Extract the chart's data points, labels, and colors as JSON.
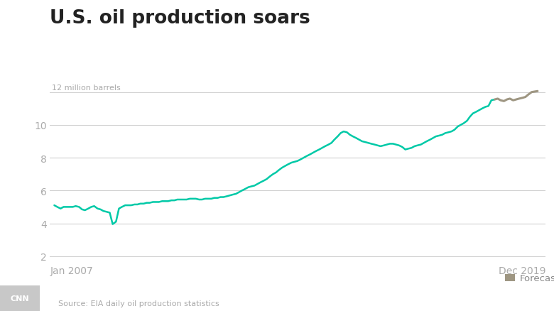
{
  "title": "U.S. oil production soars",
  "ylabel_top": "12 million barrels",
  "source": "Source: EIA daily oil production statistics",
  "forecast_label": "Forecast",
  "xlim_start": 2006.88,
  "xlim_end": 2020.3,
  "ylim": [
    1.6,
    13.0
  ],
  "yticks": [
    2,
    4,
    6,
    8,
    10,
    12
  ],
  "actual_color": "#00C9A7",
  "forecast_color": "#9E9682",
  "background_color": "#ffffff",
  "grid_color": "#d0d0d0",
  "title_fontsize": 19,
  "tick_fontsize": 10,
  "label_fontsize": 8.5,
  "source_fontsize": 8,
  "cnn_bg": "#c8c8c8",
  "actual_data": [
    [
      2007.0,
      5.1
    ],
    [
      2007.08,
      5.0
    ],
    [
      2007.17,
      4.9
    ],
    [
      2007.25,
      5.0
    ],
    [
      2007.33,
      5.0
    ],
    [
      2007.42,
      5.0
    ],
    [
      2007.5,
      5.0
    ],
    [
      2007.58,
      5.05
    ],
    [
      2007.67,
      5.0
    ],
    [
      2007.75,
      4.85
    ],
    [
      2007.83,
      4.8
    ],
    [
      2007.92,
      4.9
    ],
    [
      2008.0,
      5.0
    ],
    [
      2008.08,
      5.05
    ],
    [
      2008.17,
      4.9
    ],
    [
      2008.25,
      4.85
    ],
    [
      2008.33,
      4.75
    ],
    [
      2008.42,
      4.7
    ],
    [
      2008.5,
      4.65
    ],
    [
      2008.58,
      3.95
    ],
    [
      2008.67,
      4.1
    ],
    [
      2008.75,
      4.9
    ],
    [
      2008.83,
      5.0
    ],
    [
      2008.92,
      5.1
    ],
    [
      2009.0,
      5.1
    ],
    [
      2009.08,
      5.1
    ],
    [
      2009.17,
      5.15
    ],
    [
      2009.25,
      5.15
    ],
    [
      2009.33,
      5.2
    ],
    [
      2009.42,
      5.2
    ],
    [
      2009.5,
      5.25
    ],
    [
      2009.58,
      5.25
    ],
    [
      2009.67,
      5.3
    ],
    [
      2009.75,
      5.3
    ],
    [
      2009.83,
      5.3
    ],
    [
      2009.92,
      5.35
    ],
    [
      2010.0,
      5.35
    ],
    [
      2010.08,
      5.35
    ],
    [
      2010.17,
      5.4
    ],
    [
      2010.25,
      5.4
    ],
    [
      2010.33,
      5.45
    ],
    [
      2010.42,
      5.45
    ],
    [
      2010.5,
      5.45
    ],
    [
      2010.58,
      5.45
    ],
    [
      2010.67,
      5.5
    ],
    [
      2010.75,
      5.5
    ],
    [
      2010.83,
      5.5
    ],
    [
      2010.92,
      5.45
    ],
    [
      2011.0,
      5.45
    ],
    [
      2011.08,
      5.5
    ],
    [
      2011.17,
      5.5
    ],
    [
      2011.25,
      5.5
    ],
    [
      2011.33,
      5.55
    ],
    [
      2011.42,
      5.55
    ],
    [
      2011.5,
      5.6
    ],
    [
      2011.58,
      5.6
    ],
    [
      2011.67,
      5.65
    ],
    [
      2011.75,
      5.7
    ],
    [
      2011.83,
      5.75
    ],
    [
      2011.92,
      5.8
    ],
    [
      2012.0,
      5.9
    ],
    [
      2012.08,
      6.0
    ],
    [
      2012.17,
      6.1
    ],
    [
      2012.25,
      6.2
    ],
    [
      2012.33,
      6.25
    ],
    [
      2012.42,
      6.3
    ],
    [
      2012.5,
      6.4
    ],
    [
      2012.58,
      6.5
    ],
    [
      2012.67,
      6.6
    ],
    [
      2012.75,
      6.7
    ],
    [
      2012.83,
      6.85
    ],
    [
      2012.92,
      7.0
    ],
    [
      2013.0,
      7.1
    ],
    [
      2013.08,
      7.25
    ],
    [
      2013.17,
      7.4
    ],
    [
      2013.25,
      7.5
    ],
    [
      2013.33,
      7.6
    ],
    [
      2013.42,
      7.7
    ],
    [
      2013.5,
      7.75
    ],
    [
      2013.58,
      7.8
    ],
    [
      2013.67,
      7.9
    ],
    [
      2013.75,
      8.0
    ],
    [
      2013.83,
      8.1
    ],
    [
      2013.92,
      8.2
    ],
    [
      2014.0,
      8.3
    ],
    [
      2014.08,
      8.4
    ],
    [
      2014.17,
      8.5
    ],
    [
      2014.25,
      8.6
    ],
    [
      2014.33,
      8.7
    ],
    [
      2014.42,
      8.8
    ],
    [
      2014.5,
      8.9
    ],
    [
      2014.58,
      9.1
    ],
    [
      2014.67,
      9.3
    ],
    [
      2014.75,
      9.5
    ],
    [
      2014.83,
      9.6
    ],
    [
      2014.92,
      9.55
    ],
    [
      2015.0,
      9.4
    ],
    [
      2015.08,
      9.3
    ],
    [
      2015.17,
      9.2
    ],
    [
      2015.25,
      9.1
    ],
    [
      2015.33,
      9.0
    ],
    [
      2015.42,
      8.95
    ],
    [
      2015.5,
      8.9
    ],
    [
      2015.58,
      8.85
    ],
    [
      2015.67,
      8.8
    ],
    [
      2015.75,
      8.75
    ],
    [
      2015.83,
      8.7
    ],
    [
      2015.92,
      8.75
    ],
    [
      2016.0,
      8.8
    ],
    [
      2016.08,
      8.85
    ],
    [
      2016.17,
      8.85
    ],
    [
      2016.25,
      8.8
    ],
    [
      2016.33,
      8.75
    ],
    [
      2016.42,
      8.65
    ],
    [
      2016.5,
      8.5
    ],
    [
      2016.58,
      8.55
    ],
    [
      2016.67,
      8.6
    ],
    [
      2016.75,
      8.7
    ],
    [
      2016.83,
      8.75
    ],
    [
      2016.92,
      8.8
    ],
    [
      2017.0,
      8.9
    ],
    [
      2017.08,
      9.0
    ],
    [
      2017.17,
      9.1
    ],
    [
      2017.25,
      9.2
    ],
    [
      2017.33,
      9.3
    ],
    [
      2017.42,
      9.35
    ],
    [
      2017.5,
      9.4
    ],
    [
      2017.58,
      9.5
    ],
    [
      2017.67,
      9.55
    ],
    [
      2017.75,
      9.6
    ],
    [
      2017.83,
      9.7
    ],
    [
      2017.92,
      9.9
    ],
    [
      2018.0,
      10.0
    ],
    [
      2018.08,
      10.1
    ],
    [
      2018.17,
      10.25
    ],
    [
      2018.25,
      10.5
    ],
    [
      2018.33,
      10.7
    ],
    [
      2018.42,
      10.8
    ],
    [
      2018.5,
      10.9
    ],
    [
      2018.58,
      11.0
    ],
    [
      2018.67,
      11.1
    ],
    [
      2018.75,
      11.15
    ],
    [
      2018.83,
      11.5
    ],
    [
      2018.92,
      11.55
    ]
  ],
  "forecast_data": [
    [
      2018.92,
      11.55
    ],
    [
      2019.0,
      11.6
    ],
    [
      2019.08,
      11.5
    ],
    [
      2019.17,
      11.45
    ],
    [
      2019.25,
      11.55
    ],
    [
      2019.33,
      11.6
    ],
    [
      2019.42,
      11.5
    ],
    [
      2019.5,
      11.55
    ],
    [
      2019.58,
      11.6
    ],
    [
      2019.67,
      11.65
    ],
    [
      2019.75,
      11.7
    ],
    [
      2019.83,
      11.85
    ],
    [
      2019.92,
      12.0
    ],
    [
      2020.08,
      12.06
    ]
  ],
  "jan2007_x": 2007.0,
  "dec2019_x": 2019.92
}
